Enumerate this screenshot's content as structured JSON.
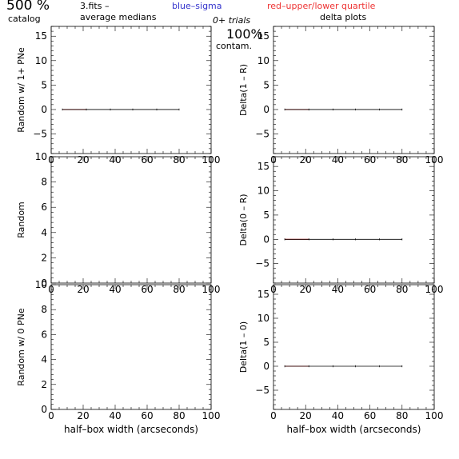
{
  "header": {
    "title_main": "500 %",
    "title_sub": "catalog",
    "file_label": "3.fits  –",
    "medians_label": "average medians",
    "legend_blue": "blue–sigma",
    "legend_red": "red–upper/lower quartile",
    "trials": "0+ trials",
    "contam_pct": "100%",
    "contam_label": "contam.",
    "delta_title": "delta plots"
  },
  "colors": {
    "sigma": "#3333cc",
    "quartile": "#ee3333",
    "median": "#000000"
  },
  "chart_data": [
    {
      "id": "left-top",
      "type": "line",
      "ylabel": "Random w/ 1+ PNe",
      "xlabel": "",
      "xlim": [
        0,
        100
      ],
      "ylim": [
        -9,
        17
      ],
      "xticks": [
        0,
        20,
        40,
        60,
        80,
        100
      ],
      "xtick_labels": [
        "0",
        "20",
        "40",
        "60",
        "80",
        "100"
      ],
      "yticks": [
        -5,
        0,
        5,
        10,
        15
      ],
      "ytick_labels": [
        "−5",
        "0",
        "5",
        "10",
        "15"
      ],
      "series": [
        {
          "role": "quartile",
          "x": [
            7,
            22
          ],
          "y": [
            0,
            0
          ]
        },
        {
          "role": "median",
          "x": [
            7,
            80
          ],
          "y": [
            0,
            0
          ]
        }
      ]
    },
    {
      "id": "right-top",
      "type": "line",
      "ylabel": "Delta(1 – R)",
      "xlabel": "",
      "xlim": [
        0,
        100
      ],
      "ylim": [
        -9,
        17
      ],
      "xticks": [
        0,
        20,
        40,
        60,
        80,
        100
      ],
      "xtick_labels": [
        "0",
        "20",
        "40",
        "60",
        "80",
        "100"
      ],
      "yticks": [
        -5,
        0,
        5,
        10,
        15
      ],
      "ytick_labels": [
        "−5",
        "0",
        "5",
        "10",
        "15"
      ],
      "series": [
        {
          "role": "quartile",
          "x": [
            7,
            22
          ],
          "y": [
            0,
            0
          ]
        },
        {
          "role": "median",
          "x": [
            7,
            80
          ],
          "y": [
            0,
            0
          ]
        }
      ]
    },
    {
      "id": "left-mid",
      "type": "line",
      "ylabel": "Random",
      "xlabel": "",
      "xlim": [
        0,
        100
      ],
      "ylim": [
        0,
        10
      ],
      "xticks": [
        0,
        20,
        40,
        60,
        80,
        100
      ],
      "xtick_labels": [
        "0",
        "20",
        "40",
        "60",
        "80",
        "100"
      ],
      "yticks": [
        0,
        2,
        4,
        6,
        8,
        10
      ],
      "ytick_labels": [
        "0",
        "2",
        "4",
        "6",
        "8",
        "10"
      ],
      "series": []
    },
    {
      "id": "right-mid",
      "type": "line",
      "ylabel": "Delta(0 – R)",
      "xlabel": "",
      "xlim": [
        0,
        100
      ],
      "ylim": [
        -9,
        17
      ],
      "xticks": [
        0,
        20,
        40,
        60,
        80,
        100
      ],
      "xtick_labels": [
        "0",
        "20",
        "40",
        "60",
        "80",
        "100"
      ],
      "yticks": [
        -5,
        0,
        5,
        10,
        15
      ],
      "ytick_labels": [
        "−5",
        "0",
        "5",
        "10",
        "15"
      ],
      "series": [
        {
          "role": "quartile",
          "x": [
            7,
            22
          ],
          "y": [
            0,
            0
          ]
        },
        {
          "role": "median",
          "x": [
            7,
            80
          ],
          "y": [
            0,
            0
          ]
        }
      ]
    },
    {
      "id": "left-bot",
      "type": "line",
      "ylabel": "Random w/ 0 PNe",
      "xlabel": "half–box width (arcseconds)",
      "xlim": [
        0,
        100
      ],
      "ylim": [
        0,
        10
      ],
      "xticks": [
        0,
        20,
        40,
        60,
        80,
        100
      ],
      "xtick_labels": [
        "0",
        "20",
        "40",
        "60",
        "80",
        "100"
      ],
      "yticks": [
        0,
        2,
        4,
        6,
        8,
        10
      ],
      "ytick_labels": [
        "0",
        "2",
        "4",
        "6",
        "8",
        "10"
      ],
      "series": []
    },
    {
      "id": "right-bot",
      "type": "line",
      "ylabel": "Delta(1 – 0)",
      "xlabel": "half–box width (arcseconds)",
      "xlim": [
        0,
        100
      ],
      "ylim": [
        -9,
        17
      ],
      "xticks": [
        0,
        20,
        40,
        60,
        80,
        100
      ],
      "xtick_labels": [
        "0",
        "20",
        "40",
        "60",
        "80",
        "100"
      ],
      "yticks": [
        -5,
        0,
        5,
        10,
        15
      ],
      "ytick_labels": [
        "−5",
        "0",
        "5",
        "10",
        "15"
      ],
      "series": [
        {
          "role": "quartile",
          "x": [
            7,
            22
          ],
          "y": [
            0,
            0
          ]
        },
        {
          "role": "median",
          "x": [
            7,
            80
          ],
          "y": [
            0,
            0
          ]
        }
      ]
    }
  ]
}
